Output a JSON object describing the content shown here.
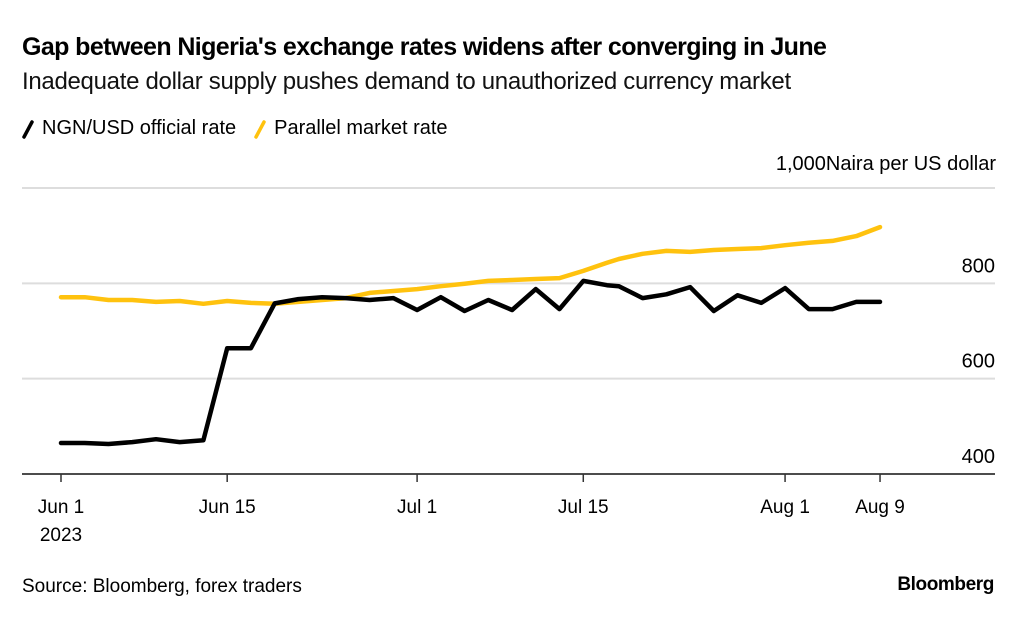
{
  "header": {
    "title": "Gap between Nigeria's exchange rates widens after converging in June",
    "subtitle": "Inadequate dollar supply pushes demand to unauthorized currency market"
  },
  "legend": [
    {
      "label": "NGN/USD official rate",
      "color": "#000000"
    },
    {
      "label": "Parallel market rate",
      "color": "#FFC20E"
    }
  ],
  "unit_label": "Naira per US dollar",
  "footer": {
    "source": "Source: Bloomberg, forex traders",
    "logo": "Bloomberg"
  },
  "chart_data": {
    "type": "line",
    "title": "Gap between Nigeria's exchange rates widens after converging in June",
    "subtitle": "Inadequate dollar supply pushes demand to unauthorized currency market",
    "xlabel": "",
    "ylabel": "Naira per US dollar",
    "ylim": [
      400,
      1000
    ],
    "yticks": [
      400,
      600,
      800,
      1000
    ],
    "ytick_labels": [
      "400",
      "600",
      "800",
      "1,000"
    ],
    "y_axis_side": "right",
    "grid": true,
    "legend_position": "top-left",
    "x_start": "2023-06-01",
    "x_end_axis_days": 79,
    "xticks": [
      {
        "day": 0,
        "label": "Jun 1",
        "sublabel": "2023"
      },
      {
        "day": 14,
        "label": "Jun 15",
        "sublabel": ""
      },
      {
        "day": 30,
        "label": "Jul 1",
        "sublabel": ""
      },
      {
        "day": 44,
        "label": "Jul 15",
        "sublabel": ""
      },
      {
        "day": 61,
        "label": "Aug 1",
        "sublabel": ""
      },
      {
        "day": 69,
        "label": "Aug 9",
        "sublabel": ""
      }
    ],
    "x_days": [
      0,
      2,
      4,
      6,
      8,
      10,
      12,
      14,
      16,
      18,
      20,
      22,
      24,
      26,
      28,
      30,
      32,
      34,
      36,
      38,
      40,
      42,
      44,
      46,
      47,
      49,
      51,
      53,
      55,
      57,
      59,
      61,
      63,
      65,
      67,
      69
    ],
    "series": [
      {
        "name": "NGN/USD official rate",
        "color": "#000000",
        "values": [
          465,
          465,
          463,
          467,
          473,
          467,
          471,
          664,
          664,
          758,
          767,
          771,
          769,
          765,
          769,
          744,
          771,
          742,
          765,
          744,
          788,
          746,
          805,
          796,
          794,
          769,
          777,
          792,
          742,
          775,
          759,
          790,
          746,
          746,
          761,
          761
        ]
      },
      {
        "name": "Parallel market rate",
        "color": "#FFC20E",
        "values": [
          771,
          771,
          765,
          765,
          761,
          763,
          757,
          763,
          759,
          757,
          761,
          765,
          769,
          780,
          784,
          788,
          794,
          799,
          805,
          807,
          809,
          811,
          826,
          843,
          851,
          862,
          868,
          866,
          870,
          872,
          874,
          880,
          885,
          889,
          899,
          918
        ]
      }
    ]
  }
}
